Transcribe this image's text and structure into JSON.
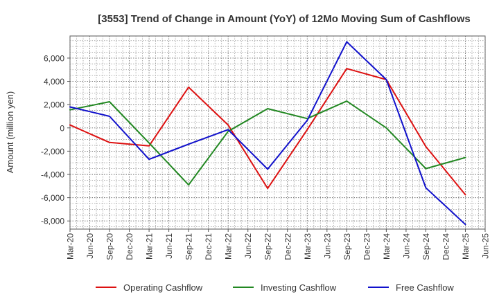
{
  "chart_data": {
    "type": "line",
    "title": "[3553]  Trend of Change in Amount (YoY) of 12Mo Moving Sum of Cashflows",
    "xlabel": "",
    "ylabel": "Amount (million yen)",
    "ylim": [
      -8700,
      7900
    ],
    "yticks": [
      6000,
      4000,
      2000,
      0,
      -2000,
      -4000,
      -6000,
      -8000
    ],
    "ytick_labels": [
      "6,000",
      "4,000",
      "2,000",
      "0",
      "-2,000",
      "-4,000",
      "-6,000",
      "-8,000"
    ],
    "categories": [
      "Mar-20",
      "Jun-20",
      "Sep-20",
      "Dec-20",
      "Mar-21",
      "Jun-21",
      "Sep-21",
      "Dec-21",
      "Mar-22",
      "Jun-22",
      "Sep-22",
      "Dec-22",
      "Mar-23",
      "Jun-23",
      "Sep-23",
      "Dec-23",
      "Mar-24",
      "Jun-24",
      "Sep-24",
      "Dec-24",
      "Mar-25",
      "Jun-25"
    ],
    "grid": true,
    "series": [
      {
        "name": "Operating Cashflow",
        "color": "#dd1111",
        "points": [
          [
            "Mar-20",
            250
          ],
          [
            "Sep-20",
            -1250
          ],
          [
            "Mar-21",
            -1550
          ],
          [
            "Sep-21",
            3500
          ],
          [
            "Mar-22",
            250
          ],
          [
            "Sep-22",
            -5200
          ],
          [
            "Mar-23",
            -150
          ],
          [
            "Sep-23",
            5100
          ],
          [
            "Mar-24",
            4150
          ],
          [
            "Sep-24",
            -1600
          ],
          [
            "Mar-25",
            -5750
          ]
        ]
      },
      {
        "name": "Investing Cashflow",
        "color": "#228822",
        "points": [
          [
            "Mar-20",
            1550
          ],
          [
            "Sep-20",
            2250
          ],
          [
            "Mar-21",
            -1300
          ],
          [
            "Sep-21",
            -4900
          ],
          [
            "Mar-22",
            -300
          ],
          [
            "Sep-22",
            1650
          ],
          [
            "Mar-23",
            800
          ],
          [
            "Sep-23",
            2300
          ],
          [
            "Mar-24",
            0
          ],
          [
            "Sep-24",
            -3500
          ],
          [
            "Mar-25",
            -2550
          ]
        ]
      },
      {
        "name": "Free Cashflow",
        "color": "#1111cc",
        "points": [
          [
            "Mar-20",
            1800
          ],
          [
            "Sep-20",
            1000
          ],
          [
            "Mar-21",
            -2700
          ],
          [
            "Sep-21",
            -1400
          ],
          [
            "Mar-22",
            -150
          ],
          [
            "Sep-22",
            -3550
          ],
          [
            "Mar-23",
            650
          ],
          [
            "Sep-23",
            7400
          ],
          [
            "Mar-24",
            4150
          ],
          [
            "Sep-24",
            -5150
          ],
          [
            "Mar-25",
            -8300
          ]
        ]
      }
    ],
    "legend": {
      "position": "bottom",
      "entries": [
        "Operating Cashflow",
        "Investing Cashflow",
        "Free Cashflow"
      ]
    }
  }
}
